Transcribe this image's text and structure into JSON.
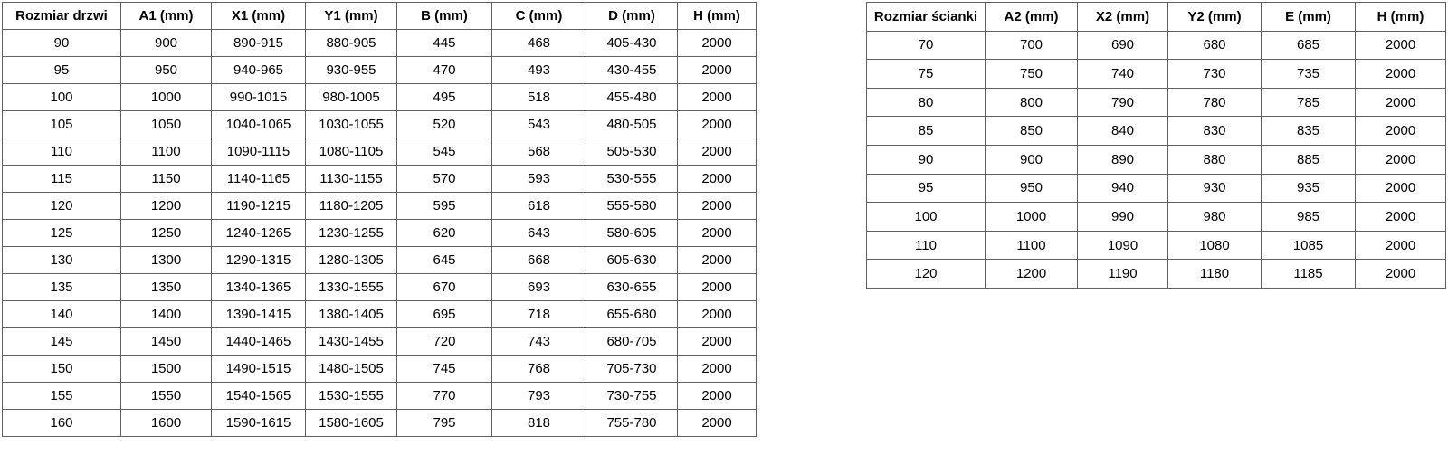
{
  "page": {
    "background": "#ffffff",
    "border_color": "#5f5f5f",
    "text_color": "#000000"
  },
  "tables": [
    {
      "name": "door-size-table",
      "headers": [
        "Rozmiar drzwi",
        "A1 (mm)",
        "X1 (mm)",
        "Y1 (mm)",
        "B (mm)",
        "C (mm)",
        "D (mm)",
        "H (mm)"
      ],
      "rows": [
        [
          "90",
          "900",
          "890-915",
          "880-905",
          "445",
          "468",
          "405-430",
          "2000"
        ],
        [
          "95",
          "950",
          "940-965",
          "930-955",
          "470",
          "493",
          "430-455",
          "2000"
        ],
        [
          "100",
          "1000",
          "990-1015",
          "980-1005",
          "495",
          "518",
          "455-480",
          "2000"
        ],
        [
          "105",
          "1050",
          "1040-1065",
          "1030-1055",
          "520",
          "543",
          "480-505",
          "2000"
        ],
        [
          "110",
          "1100",
          "1090-1115",
          "1080-1105",
          "545",
          "568",
          "505-530",
          "2000"
        ],
        [
          "115",
          "1150",
          "1140-1165",
          "1130-1155",
          "570",
          "593",
          "530-555",
          "2000"
        ],
        [
          "120",
          "1200",
          "1190-1215",
          "1180-1205",
          "595",
          "618",
          "555-580",
          "2000"
        ],
        [
          "125",
          "1250",
          "1240-1265",
          "1230-1255",
          "620",
          "643",
          "580-605",
          "2000"
        ],
        [
          "130",
          "1300",
          "1290-1315",
          "1280-1305",
          "645",
          "668",
          "605-630",
          "2000"
        ],
        [
          "135",
          "1350",
          "1340-1365",
          "1330-1555",
          "670",
          "693",
          "630-655",
          "2000"
        ],
        [
          "140",
          "1400",
          "1390-1415",
          "1380-1405",
          "695",
          "718",
          "655-680",
          "2000"
        ],
        [
          "145",
          "1450",
          "1440-1465",
          "1430-1455",
          "720",
          "743",
          "680-705",
          "2000"
        ],
        [
          "150",
          "1500",
          "1490-1515",
          "1480-1505",
          "745",
          "768",
          "705-730",
          "2000"
        ],
        [
          "155",
          "1550",
          "1540-1565",
          "1530-1555",
          "770",
          "793",
          "730-755",
          "2000"
        ],
        [
          "160",
          "1600",
          "1590-1615",
          "1580-1605",
          "795",
          "818",
          "755-780",
          "2000"
        ]
      ]
    },
    {
      "name": "wall-size-table",
      "headers": [
        "Rozmiar ścianki",
        "A2 (mm)",
        "X2 (mm)",
        "Y2 (mm)",
        "E (mm)",
        "H (mm)"
      ],
      "rows": [
        [
          "70",
          "700",
          "690",
          "680",
          "685",
          "2000"
        ],
        [
          "75",
          "750",
          "740",
          "730",
          "735",
          "2000"
        ],
        [
          "80",
          "800",
          "790",
          "780",
          "785",
          "2000"
        ],
        [
          "85",
          "850",
          "840",
          "830",
          "835",
          "2000"
        ],
        [
          "90",
          "900",
          "890",
          "880",
          "885",
          "2000"
        ],
        [
          "95",
          "950",
          "940",
          "930",
          "935",
          "2000"
        ],
        [
          "100",
          "1000",
          "990",
          "980",
          "985",
          "2000"
        ],
        [
          "110",
          "1100",
          "1090",
          "1080",
          "1085",
          "2000"
        ],
        [
          "120",
          "1200",
          "1190",
          "1180",
          "1185",
          "2000"
        ]
      ]
    }
  ]
}
